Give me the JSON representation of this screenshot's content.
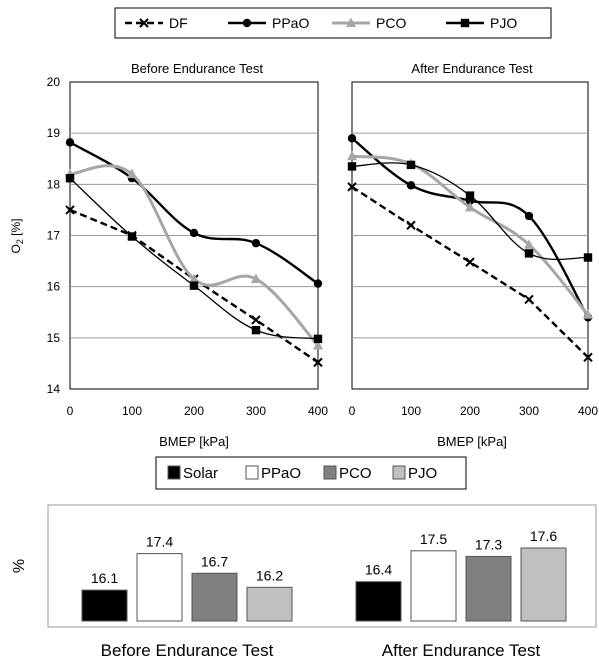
{
  "chart_data": [
    {
      "type": "line",
      "title": "Before Endurance Test",
      "xlabel": "BMEP [kPa]",
      "ylabel": "O",
      "ylabel_sub": "2",
      "ylabel_unit": " [%]",
      "x": [
        0,
        100,
        200,
        300,
        400
      ],
      "xlim": [
        0,
        400
      ],
      "ylim": [
        14,
        20
      ],
      "yticks": [
        14,
        15,
        16,
        17,
        18,
        19,
        20
      ],
      "grid": "horizontal",
      "series": [
        {
          "name": "DF",
          "style": "dashed",
          "marker": "x",
          "color": "#000000",
          "values": [
            17.5,
            17.0,
            16.15,
            15.35,
            14.52
          ]
        },
        {
          "name": "PPaO",
          "style": "solid",
          "marker": "circle",
          "color": "#000000",
          "values": [
            18.82,
            18.12,
            17.05,
            16.85,
            16.06
          ]
        },
        {
          "name": "PCO",
          "style": "solid",
          "marker": "triangle",
          "color": "#a6a6a6",
          "values": [
            18.2,
            18.2,
            16.15,
            16.15,
            14.85
          ]
        },
        {
          "name": "PJO",
          "style": "solid",
          "marker": "square",
          "color": "#000000",
          "values": [
            18.12,
            16.98,
            16.02,
            15.15,
            14.98
          ]
        }
      ]
    },
    {
      "type": "line",
      "title": "After Endurance Test",
      "xlabel": "BMEP [kPa]",
      "x": [
        0,
        100,
        200,
        300,
        400
      ],
      "xlim": [
        0,
        400
      ],
      "ylim": [
        14,
        20
      ],
      "grid": "horizontal",
      "series": [
        {
          "name": "DF",
          "style": "dashed",
          "marker": "x",
          "color": "#000000",
          "values": [
            17.95,
            17.2,
            16.48,
            15.75,
            14.62
          ]
        },
        {
          "name": "PPaO",
          "style": "solid",
          "marker": "circle",
          "color": "#000000",
          "values": [
            18.9,
            17.98,
            17.68,
            17.38,
            15.4
          ]
        },
        {
          "name": "PCO",
          "style": "solid",
          "marker": "triangle",
          "color": "#a6a6a6",
          "values": [
            18.55,
            18.4,
            17.55,
            16.82,
            15.45
          ]
        },
        {
          "name": "PJO",
          "style": "solid",
          "marker": "square",
          "color": "#000000",
          "values": [
            18.35,
            18.38,
            17.78,
            16.65,
            16.57
          ]
        }
      ]
    },
    {
      "type": "bar",
      "ylabel": "%",
      "categories": [
        "Before Endurance Test",
        "After Endurance Test"
      ],
      "ylim": [
        15,
        18
      ],
      "series": [
        {
          "name": "Solar",
          "color": "#000000",
          "values": [
            16.1,
            16.4
          ]
        },
        {
          "name": "PPaO",
          "color": "#ffffff",
          "values": [
            17.4,
            17.5
          ]
        },
        {
          "name": "PCO",
          "color": "#808080",
          "values": [
            16.7,
            17.3
          ]
        },
        {
          "name": "PJO",
          "color": "#c0c0c0",
          "values": [
            16.2,
            17.6
          ]
        }
      ],
      "data_labels": [
        [
          "16.1",
          "17.4",
          "16.7",
          "16.2"
        ],
        [
          "16.4",
          "17.5",
          "17.3",
          "17.6"
        ]
      ]
    }
  ]
}
